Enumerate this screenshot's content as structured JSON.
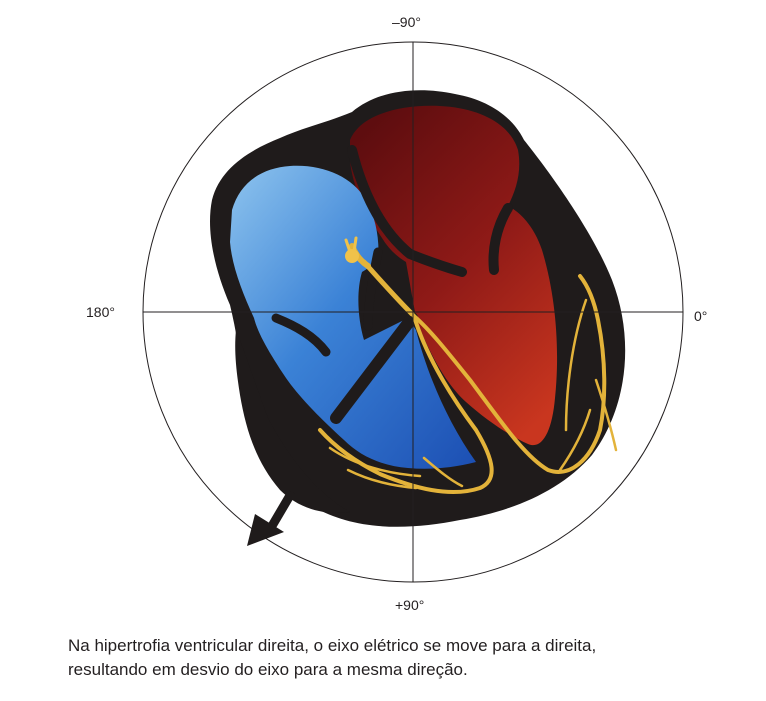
{
  "axis_labels": {
    "top": "–90°",
    "bottom": "+90°",
    "left": "180°",
    "right": "0°"
  },
  "caption": {
    "line1": "Na hipertrofia ventricular direita, o eixo elétrico se move para a direita,",
    "line2": "resultando em desvio do eixo para a mesma direção."
  },
  "colors": {
    "heart_outline": "#1f1b1b",
    "right_chambers": "#2f6fc4",
    "left_chambers": "#a8221c",
    "conduction_system": "#e3b33a",
    "axis_lines": "#231f20"
  }
}
